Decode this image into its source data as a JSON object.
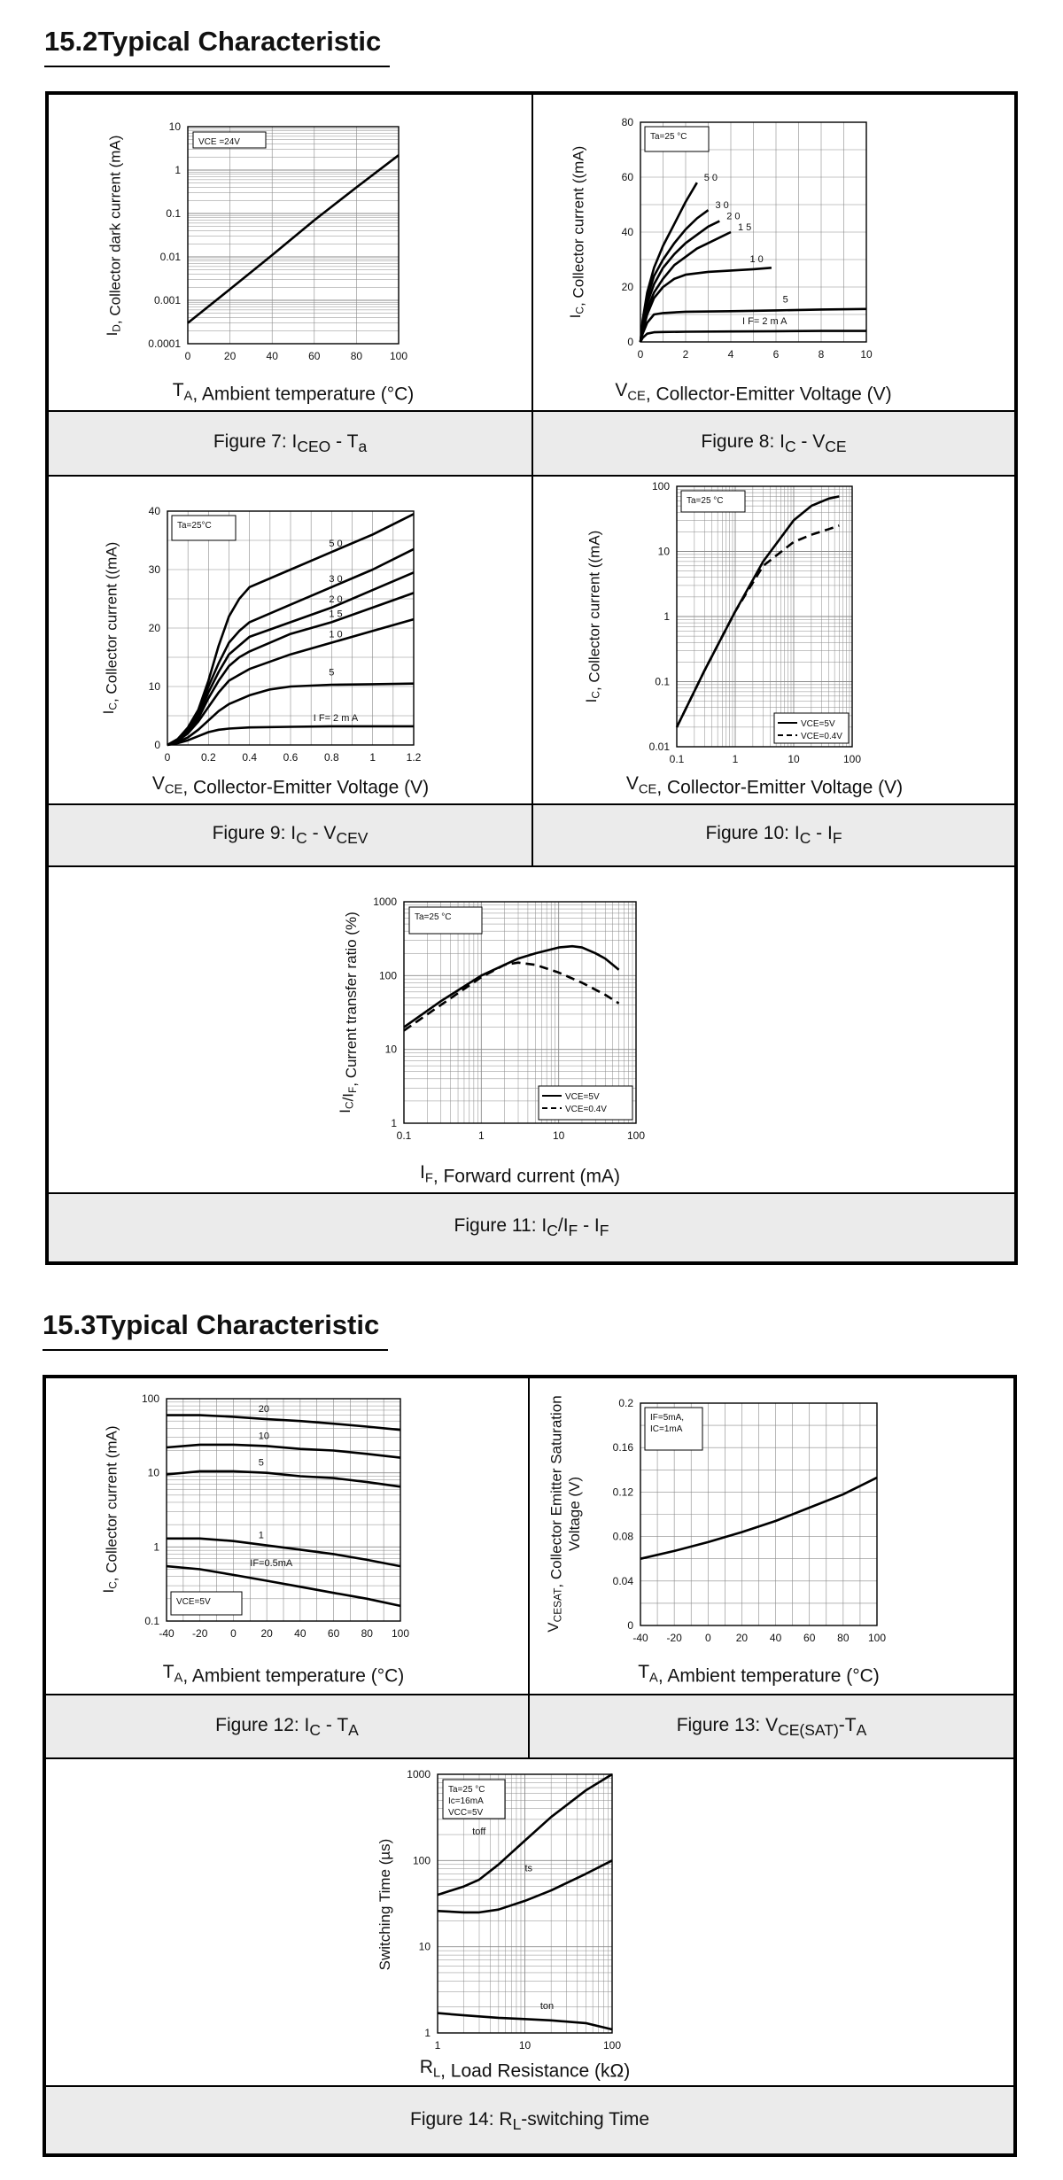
{
  "sections": [
    {
      "title": "15.2Typical Characteristic"
    },
    {
      "title": "15.3Typical Characteristic"
    }
  ],
  "figures": [
    {
      "id": "fig7",
      "caption": {
        "pre": "Figure 7: I",
        "sub1": "CEO",
        "mid": " - T",
        "sub2": "a",
        "post": ""
      },
      "xlabel": {
        "pre": "T",
        "sub": "A",
        "post": ", Ambient temperature (°C)"
      },
      "ylabel": {
        "pre": "I",
        "sub": "D",
        "post": ", Collector dark current (mA)"
      },
      "inbox": [
        "VCE =24V"
      ],
      "xticks": [
        "0",
        "20",
        "40",
        "60",
        "80",
        "100"
      ],
      "yticks": [
        "10",
        "1",
        "0.1",
        "0.01",
        "0.001",
        "0.0001"
      ]
    },
    {
      "id": "fig8",
      "caption": {
        "pre": "Figure 8: I",
        "sub1": "C",
        "mid": " - V",
        "sub2": "CE",
        "post": ""
      },
      "xlabel": {
        "pre": "V",
        "sub": "CE",
        "post": ", Collector-Emitter Voltage (V)"
      },
      "ylabel": {
        "pre": "I",
        "sub": "C",
        "post": ", Collector current ((mA)"
      },
      "inbox": [
        "Ta=25 °C"
      ],
      "xticks": [
        "0",
        "2",
        "4",
        "6",
        "8",
        "10"
      ],
      "yticks": [
        "80",
        "60",
        "40",
        "20",
        "0"
      ],
      "curve_labels": [
        "5 0",
        "3 0",
        "2 0",
        "1 5",
        "1 0",
        "5",
        "I F= 2 m A"
      ]
    },
    {
      "id": "fig9",
      "caption": {
        "pre": "Figure 9: I",
        "sub1": "C",
        "mid": " - V",
        "sub2": "CEV",
        "post": ""
      },
      "xlabel": {
        "pre": "V",
        "sub": "CE",
        "post": ", Collector-Emitter Voltage (V)"
      },
      "ylabel": {
        "pre": "I",
        "sub": "C",
        "post": ", Collector current ((mA)"
      },
      "inbox": [
        "Ta=25°C"
      ],
      "xticks": [
        "0",
        "0.2",
        "0.4",
        "0.6",
        "0.8",
        "1",
        "1.2"
      ],
      "yticks": [
        "40",
        "30",
        "20",
        "10",
        "0"
      ],
      "curve_labels": [
        "5 0",
        "3 0",
        "2 0",
        "1 5",
        "1 0",
        "5",
        "I F= 2 m A"
      ]
    },
    {
      "id": "fig10",
      "caption": {
        "pre": "Figure 10: I",
        "sub1": "C",
        "mid": " - I",
        "sub2": "F",
        "post": ""
      },
      "xlabel": {
        "pre": "V",
        "sub": "CE",
        "post": ", Collector-Emitter Voltage (V)"
      },
      "ylabel": {
        "pre": "I",
        "sub": "C",
        "post": ", Collector current ((mA)"
      },
      "inbox": [
        "Ta=25 °C"
      ],
      "xticks": [
        "0.1",
        "1",
        "10",
        "100"
      ],
      "yticks": [
        "100",
        "10",
        "1",
        "0.1",
        "0.01"
      ],
      "legend": [
        "VCE=5V",
        "VCE=0.4V"
      ]
    },
    {
      "id": "fig11",
      "caption": {
        "pre": "Figure 11: I",
        "sub1": "C",
        "mid": "/I",
        "sub2": "F",
        "post": " - I",
        "sub3": "F"
      },
      "xlabel": {
        "pre": "I",
        "sub": "F",
        "post": ", Forward current (mA)"
      },
      "ylabel": {
        "pre": "I",
        "sub": "C",
        "mid": "/I",
        "sub2": "F",
        "post": ", Current transfer ratio (%)"
      },
      "inbox": [
        "Ta=25 °C"
      ],
      "xticks": [
        "0.1",
        "1",
        "10",
        "100"
      ],
      "yticks": [
        "1000",
        "100",
        "10",
        "1"
      ],
      "legend": [
        "VCE=5V",
        "VCE=0.4V"
      ]
    },
    {
      "id": "fig12",
      "caption": {
        "pre": "Figure 12: I",
        "sub1": "C",
        "mid": " - T",
        "sub2": "A",
        "post": ""
      },
      "xlabel": {
        "pre": "T",
        "sub": "A",
        "post": ", Ambient temperature (°C)"
      },
      "ylabel": {
        "pre": "I",
        "sub": "C",
        "post": ", Collector current (mA)"
      },
      "inbox": [
        "VCE=5V"
      ],
      "xticks": [
        "-40",
        "-20",
        "0",
        "20",
        "40",
        "60",
        "80",
        "100"
      ],
      "yticks": [
        "100",
        "10",
        "1",
        "0.1"
      ],
      "curve_labels": [
        "20",
        "10",
        "5",
        "1",
        "IF=0.5mA"
      ]
    },
    {
      "id": "fig13",
      "caption": {
        "pre": "Figure 13: V",
        "sub1": "CE(SAT)",
        "mid": "-T",
        "sub2": "A",
        "post": ""
      },
      "xlabel": {
        "pre": "T",
        "sub": "A",
        "post": ", Ambient temperature (°C)"
      },
      "ylabel": {
        "pre": "V",
        "sub": "CESAT",
        "post": ", Collector Emitter Saturation",
        "line2": "Voltage (V)"
      },
      "inbox": [
        "IF=5mA,",
        "IC=1mA"
      ],
      "xticks": [
        "-40",
        "-20",
        "0",
        "20",
        "40",
        "60",
        "80",
        "100"
      ],
      "yticks": [
        "0.2",
        "0.16",
        "0.12",
        "0.08",
        "0.04",
        "0"
      ]
    },
    {
      "id": "fig14",
      "caption": {
        "pre": "Figure 14: R",
        "sub1": "L",
        "mid": "-switching Time",
        "sub2": "",
        "post": ""
      },
      "xlabel": {
        "pre": "R",
        "sub": "L",
        "post": ", Load Resistance (kΩ)"
      },
      "ylabel": {
        "pre": "Switching Time (µs)",
        "sub": "",
        "post": ""
      },
      "inbox": [
        "Ta=25 °C",
        "Ic=16mA",
        "VCC=5V"
      ],
      "xticks": [
        "1",
        "10",
        "100"
      ],
      "yticks": [
        "1000",
        "100",
        "10",
        "1"
      ],
      "curve_labels": [
        "toff",
        "ts",
        "ton"
      ]
    }
  ],
  "chart_data": [
    {
      "type": "line",
      "figure": "Figure 7",
      "xlim": [
        0,
        100
      ],
      "ylim": [
        0.0001,
        10
      ],
      "yscale": "log",
      "grid": true,
      "series": [
        {
          "x": [
            0,
            20,
            40,
            60,
            80,
            100
          ],
          "y": [
            0.0003,
            0.0018,
            0.011,
            0.07,
            0.4,
            2.2
          ]
        }
      ]
    },
    {
      "type": "line",
      "figure": "Figure 8",
      "xlim": [
        0,
        10
      ],
      "ylim": [
        0,
        80
      ],
      "grid": true,
      "series": [
        {
          "name": "5 0",
          "x": [
            0,
            0.1,
            0.3,
            0.6,
            1,
            1.5,
            2,
            2.5
          ],
          "y": [
            0,
            8,
            18,
            27,
            35,
            43,
            51,
            58
          ]
        },
        {
          "name": "3 0",
          "x": [
            0,
            0.1,
            0.3,
            0.6,
            1,
            1.5,
            2,
            2.5,
            3
          ],
          "y": [
            0,
            7,
            16,
            24,
            30,
            36,
            41,
            45,
            48
          ]
        },
        {
          "name": "2 0",
          "x": [
            0,
            0.1,
            0.3,
            0.6,
            1,
            1.5,
            2,
            2.5,
            3,
            3.5
          ],
          "y": [
            0,
            6,
            14,
            21,
            27,
            32,
            36,
            39,
            42,
            44
          ]
        },
        {
          "name": "1 5",
          "x": [
            0,
            0.1,
            0.3,
            0.6,
            1,
            1.5,
            2,
            2.5,
            3,
            3.5,
            4
          ],
          "y": [
            0,
            5,
            12,
            18,
            23,
            28,
            31,
            34,
            36,
            38,
            40
          ]
        },
        {
          "name": "1 0",
          "x": [
            0,
            0.1,
            0.3,
            0.6,
            1,
            1.5,
            2,
            3,
            4,
            5,
            5.8
          ],
          "y": [
            0,
            4,
            10,
            16,
            20,
            23,
            24.5,
            25.5,
            26,
            26.5,
            27
          ]
        },
        {
          "name": "5",
          "x": [
            0,
            0.1,
            0.3,
            0.6,
            1,
            2,
            4,
            6,
            8,
            10
          ],
          "y": [
            0,
            3,
            7,
            10,
            10.5,
            11,
            11.2,
            11.5,
            11.8,
            12
          ]
        },
        {
          "name": "I F= 2 m A",
          "x": [
            0,
            0.1,
            0.3,
            0.6,
            1,
            2,
            4,
            6,
            8,
            10
          ],
          "y": [
            0,
            1.5,
            3,
            3.5,
            3.6,
            3.7,
            3.8,
            3.9,
            4,
            4
          ]
        }
      ]
    },
    {
      "type": "line",
      "figure": "Figure 9",
      "xlim": [
        0,
        1.2
      ],
      "ylim": [
        0,
        40
      ],
      "grid": true,
      "series": [
        {
          "name": "5 0",
          "x": [
            0,
            0.05,
            0.1,
            0.15,
            0.2,
            0.25,
            0.3,
            0.35,
            0.4,
            0.6,
            0.8,
            1,
            1.2
          ],
          "y": [
            0,
            1,
            3,
            6,
            11,
            17,
            22,
            25,
            27,
            30,
            33,
            36,
            39.5
          ]
        },
        {
          "name": "3 0",
          "x": [
            0,
            0.05,
            0.1,
            0.15,
            0.2,
            0.25,
            0.3,
            0.35,
            0.4,
            0.6,
            0.8,
            1,
            1.2
          ],
          "y": [
            0,
            1,
            2.8,
            5.5,
            10,
            14,
            17.5,
            19.5,
            21,
            24,
            27,
            30,
            33.5
          ]
        },
        {
          "name": "2 0",
          "x": [
            0,
            0.05,
            0.1,
            0.15,
            0.2,
            0.25,
            0.3,
            0.35,
            0.4,
            0.6,
            0.8,
            1,
            1.2
          ],
          "y": [
            0,
            0.9,
            2.5,
            5,
            9,
            12.5,
            15.5,
            17,
            18.5,
            21,
            23.5,
            26.5,
            29.5
          ]
        },
        {
          "name": "1 5",
          "x": [
            0,
            0.05,
            0.1,
            0.15,
            0.2,
            0.25,
            0.3,
            0.35,
            0.4,
            0.6,
            0.8,
            1,
            1.2
          ],
          "y": [
            0,
            0.8,
            2.3,
            4.5,
            8,
            11,
            13.5,
            15,
            16,
            19,
            21,
            23.5,
            26
          ]
        },
        {
          "name": "1 0",
          "x": [
            0,
            0.05,
            0.1,
            0.15,
            0.2,
            0.25,
            0.3,
            0.35,
            0.4,
            0.6,
            0.8,
            1,
            1.2
          ],
          "y": [
            0,
            0.7,
            2,
            4,
            6.5,
            9,
            11,
            12,
            13,
            15.5,
            17.5,
            19.5,
            21.5
          ]
        },
        {
          "name": "5",
          "x": [
            0,
            0.05,
            0.1,
            0.15,
            0.2,
            0.25,
            0.3,
            0.4,
            0.5,
            0.6,
            0.8,
            1,
            1.2
          ],
          "y": [
            0,
            0.5,
            1.3,
            2.6,
            4.2,
            5.8,
            7,
            8.5,
            9.5,
            10,
            10.3,
            10.4,
            10.5
          ]
        },
        {
          "name": "I F= 2 m A",
          "x": [
            0,
            0.05,
            0.1,
            0.15,
            0.2,
            0.25,
            0.3,
            0.4,
            0.6,
            0.8,
            1,
            1.2
          ],
          "y": [
            0,
            0.3,
            0.8,
            1.5,
            2.2,
            2.6,
            2.8,
            3,
            3.1,
            3.2,
            3.2,
            3.2
          ]
        }
      ]
    },
    {
      "type": "line",
      "figure": "Figure 10",
      "xlim": [
        0.1,
        100
      ],
      "ylim": [
        0.01,
        100
      ],
      "xscale": "log",
      "yscale": "log",
      "grid": true,
      "legend": "bottom-right",
      "series": [
        {
          "name": "VCE=5V",
          "x": [
            0.1,
            0.3,
            1,
            3,
            10,
            20,
            40,
            60
          ],
          "y": [
            0.02,
            0.15,
            1.2,
            7,
            30,
            50,
            65,
            70
          ]
        },
        {
          "name": "VCE=0.4V",
          "x": [
            0.1,
            0.3,
            1,
            3,
            10,
            20,
            40,
            60
          ],
          "y": [
            0.02,
            0.15,
            1.2,
            6,
            14,
            18,
            22,
            25
          ]
        }
      ]
    },
    {
      "type": "line",
      "figure": "Figure 11",
      "xlim": [
        0.1,
        100
      ],
      "ylim": [
        1,
        1000
      ],
      "xscale": "log",
      "yscale": "log",
      "grid": true,
      "legend": "bottom-right",
      "series": [
        {
          "name": "VCE=5V",
          "x": [
            0.1,
            0.3,
            1,
            3,
            5,
            10,
            15,
            20,
            30,
            40,
            60
          ],
          "y": [
            20,
            45,
            100,
            170,
            200,
            240,
            250,
            240,
            200,
            170,
            120
          ]
        },
        {
          "name": "VCE=0.4V",
          "x": [
            0.1,
            0.3,
            1,
            2,
            3,
            5,
            10,
            20,
            40,
            60
          ],
          "y": [
            18,
            40,
            95,
            140,
            150,
            140,
            110,
            80,
            55,
            42
          ]
        }
      ]
    },
    {
      "type": "line",
      "figure": "Figure 12",
      "xlim": [
        -40,
        100
      ],
      "ylim": [
        0.1,
        100
      ],
      "yscale": "log",
      "grid": true,
      "series": [
        {
          "name": "20",
          "x": [
            -40,
            -20,
            0,
            20,
            40,
            60,
            80,
            100
          ],
          "y": [
            60,
            60,
            57,
            53,
            50,
            46,
            42,
            38
          ]
        },
        {
          "name": "10",
          "x": [
            -40,
            -20,
            0,
            20,
            40,
            60,
            80,
            100
          ],
          "y": [
            22,
            24,
            24,
            23,
            21,
            20,
            18,
            16
          ]
        },
        {
          "name": "5",
          "x": [
            -40,
            -20,
            0,
            20,
            40,
            60,
            80,
            100
          ],
          "y": [
            9.5,
            10.5,
            10.5,
            10,
            9,
            8.5,
            7.5,
            6.5
          ]
        },
        {
          "name": "1",
          "x": [
            -40,
            -20,
            0,
            20,
            40,
            60,
            80,
            100
          ],
          "y": [
            1.3,
            1.3,
            1.2,
            1.05,
            0.92,
            0.8,
            0.67,
            0.55
          ]
        },
        {
          "name": "IF=0.5mA",
          "x": [
            -40,
            -20,
            0,
            20,
            40,
            60,
            80,
            100
          ],
          "y": [
            0.55,
            0.5,
            0.42,
            0.35,
            0.29,
            0.24,
            0.2,
            0.16
          ]
        }
      ]
    },
    {
      "type": "line",
      "figure": "Figure 13",
      "xlim": [
        -40,
        100
      ],
      "ylim": [
        0,
        0.2
      ],
      "grid": true,
      "series": [
        {
          "x": [
            -40,
            -20,
            0,
            20,
            40,
            60,
            80,
            100
          ],
          "y": [
            0.06,
            0.067,
            0.075,
            0.084,
            0.094,
            0.106,
            0.118,
            0.133
          ]
        }
      ]
    },
    {
      "type": "line",
      "figure": "Figure 14",
      "xlim": [
        1,
        100
      ],
      "ylim": [
        1,
        1000
      ],
      "xscale": "log",
      "yscale": "log",
      "grid": true,
      "series": [
        {
          "name": "toff",
          "x": [
            1,
            2,
            3,
            5,
            10,
            20,
            50,
            100
          ],
          "y": [
            40,
            50,
            60,
            90,
            170,
            320,
            650,
            1000
          ]
        },
        {
          "name": "ts",
          "x": [
            1,
            2,
            3,
            5,
            10,
            20,
            50,
            100
          ],
          "y": [
            26,
            25,
            25,
            27,
            34,
            45,
            70,
            100
          ]
        },
        {
          "name": "ton",
          "x": [
            1,
            2,
            5,
            10,
            20,
            50,
            100
          ],
          "y": [
            1.7,
            1.6,
            1.5,
            1.45,
            1.4,
            1.3,
            1.1
          ]
        }
      ]
    }
  ]
}
